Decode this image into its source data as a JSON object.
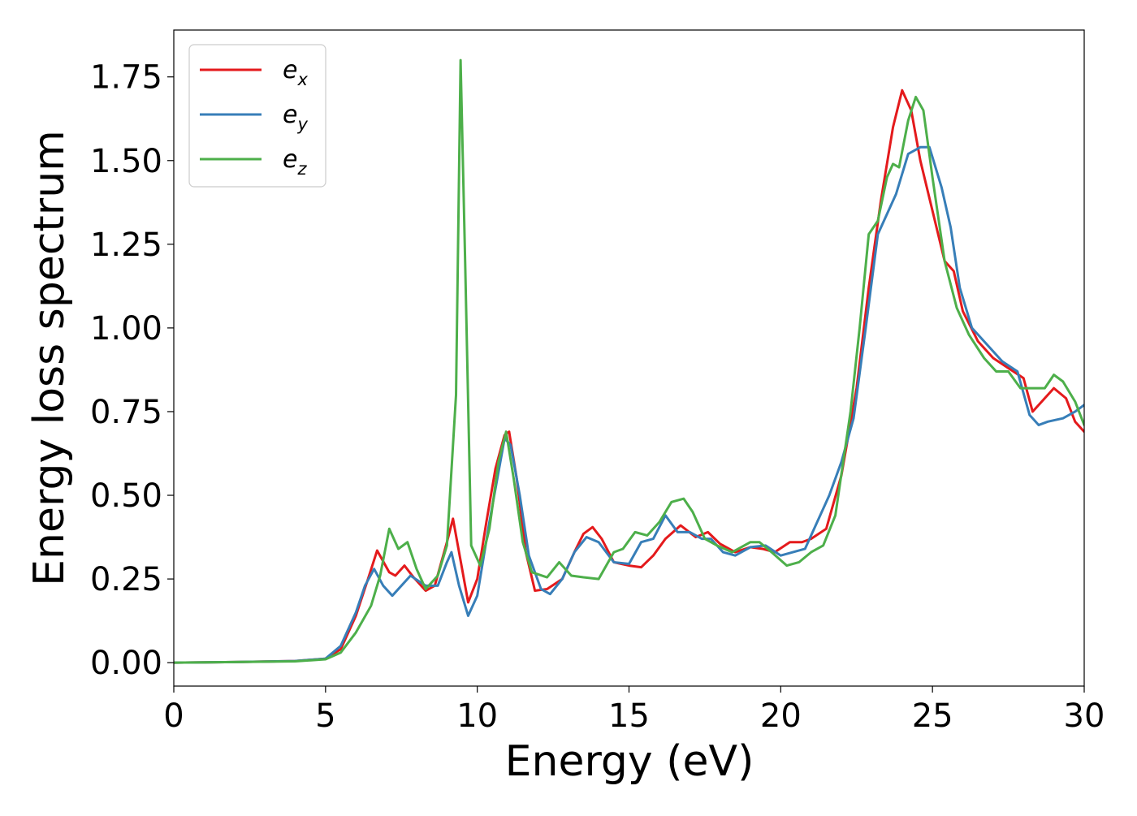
{
  "chart_data": {
    "type": "line",
    "title": "",
    "xlabel": "Energy (eV)",
    "ylabel": "Energy loss spectrum",
    "xlim": [
      0,
      30
    ],
    "ylim": [
      -0.07,
      1.89
    ],
    "xticks": [
      0,
      5,
      10,
      15,
      20,
      25,
      30
    ],
    "xtick_labels": [
      "0",
      "5",
      "10",
      "15",
      "20",
      "25",
      "30"
    ],
    "yticks": [
      0.0,
      0.25,
      0.5,
      0.75,
      1.0,
      1.25,
      1.5,
      1.75
    ],
    "ytick_labels": [
      "0.00",
      "0.25",
      "0.50",
      "0.75",
      "1.00",
      "1.25",
      "1.50",
      "1.75"
    ],
    "grid": false,
    "legend_position": "top-left",
    "series": [
      {
        "name": "e_x",
        "label_base": "e",
        "label_sub": "x",
        "color": "#e41a1c",
        "points": [
          [
            0,
            0
          ],
          [
            2,
            0.002
          ],
          [
            4,
            0.005
          ],
          [
            5,
            0.012
          ],
          [
            5.5,
            0.04
          ],
          [
            6,
            0.14
          ],
          [
            6.4,
            0.25
          ],
          [
            6.7,
            0.335
          ],
          [
            7.1,
            0.27
          ],
          [
            7.3,
            0.26
          ],
          [
            7.6,
            0.29
          ],
          [
            7.9,
            0.255
          ],
          [
            8.3,
            0.215
          ],
          [
            8.6,
            0.23
          ],
          [
            9,
            0.36
          ],
          [
            9.2,
            0.43
          ],
          [
            9.4,
            0.33
          ],
          [
            9.7,
            0.18
          ],
          [
            10,
            0.25
          ],
          [
            10.3,
            0.42
          ],
          [
            10.6,
            0.58
          ],
          [
            10.9,
            0.68
          ],
          [
            11.05,
            0.69
          ],
          [
            11.3,
            0.55
          ],
          [
            11.6,
            0.33
          ],
          [
            11.9,
            0.215
          ],
          [
            12.3,
            0.22
          ],
          [
            12.8,
            0.25
          ],
          [
            13.2,
            0.33
          ],
          [
            13.5,
            0.385
          ],
          [
            13.8,
            0.405
          ],
          [
            14.1,
            0.37
          ],
          [
            14.5,
            0.3
          ],
          [
            15,
            0.29
          ],
          [
            15.4,
            0.285
          ],
          [
            15.8,
            0.32
          ],
          [
            16.2,
            0.37
          ],
          [
            16.7,
            0.41
          ],
          [
            17.2,
            0.375
          ],
          [
            17.6,
            0.39
          ],
          [
            18,
            0.355
          ],
          [
            18.5,
            0.33
          ],
          [
            19,
            0.345
          ],
          [
            19.4,
            0.34
          ],
          [
            19.8,
            0.33
          ],
          [
            20.3,
            0.36
          ],
          [
            20.7,
            0.36
          ],
          [
            21,
            0.37
          ],
          [
            21.5,
            0.4
          ],
          [
            22,
            0.56
          ],
          [
            22.5,
            0.82
          ],
          [
            22.9,
            1.12
          ],
          [
            23.3,
            1.38
          ],
          [
            23.7,
            1.6
          ],
          [
            24,
            1.71
          ],
          [
            24.3,
            1.65
          ],
          [
            24.6,
            1.5
          ],
          [
            25,
            1.35
          ],
          [
            25.4,
            1.2
          ],
          [
            25.7,
            1.17
          ],
          [
            26,
            1.05
          ],
          [
            26.5,
            0.96
          ],
          [
            27,
            0.91
          ],
          [
            27.5,
            0.88
          ],
          [
            28,
            0.85
          ],
          [
            28.3,
            0.75
          ],
          [
            28.7,
            0.79
          ],
          [
            29,
            0.82
          ],
          [
            29.4,
            0.79
          ],
          [
            29.7,
            0.72
          ],
          [
            30,
            0.69
          ]
        ]
      },
      {
        "name": "e_y",
        "label_base": "e",
        "label_sub": "y",
        "color": "#377eb8",
        "points": [
          [
            0,
            0
          ],
          [
            2,
            0.002
          ],
          [
            4,
            0.005
          ],
          [
            5,
            0.012
          ],
          [
            5.5,
            0.05
          ],
          [
            6,
            0.15
          ],
          [
            6.3,
            0.23
          ],
          [
            6.6,
            0.28
          ],
          [
            6.9,
            0.23
          ],
          [
            7.2,
            0.2
          ],
          [
            7.8,
            0.26
          ],
          [
            8.3,
            0.23
          ],
          [
            8.7,
            0.23
          ],
          [
            9,
            0.3
          ],
          [
            9.15,
            0.33
          ],
          [
            9.4,
            0.23
          ],
          [
            9.7,
            0.14
          ],
          [
            10,
            0.2
          ],
          [
            10.4,
            0.42
          ],
          [
            10.9,
            0.67
          ],
          [
            11.1,
            0.65
          ],
          [
            11.4,
            0.5
          ],
          [
            11.7,
            0.32
          ],
          [
            12.1,
            0.22
          ],
          [
            12.4,
            0.205
          ],
          [
            12.8,
            0.25
          ],
          [
            13.2,
            0.33
          ],
          [
            13.6,
            0.375
          ],
          [
            14,
            0.36
          ],
          [
            14.5,
            0.3
          ],
          [
            15,
            0.295
          ],
          [
            15.4,
            0.36
          ],
          [
            15.8,
            0.37
          ],
          [
            16.2,
            0.44
          ],
          [
            16.6,
            0.39
          ],
          [
            17,
            0.39
          ],
          [
            17.4,
            0.37
          ],
          [
            17.7,
            0.37
          ],
          [
            18.1,
            0.33
          ],
          [
            18.5,
            0.32
          ],
          [
            19,
            0.345
          ],
          [
            19.5,
            0.35
          ],
          [
            20,
            0.32
          ],
          [
            20.4,
            0.33
          ],
          [
            20.8,
            0.34
          ],
          [
            21.2,
            0.42
          ],
          [
            21.6,
            0.5
          ],
          [
            22,
            0.6
          ],
          [
            22.4,
            0.73
          ],
          [
            22.8,
            1.0
          ],
          [
            23.2,
            1.28
          ],
          [
            23.5,
            1.34
          ],
          [
            23.8,
            1.4
          ],
          [
            24.2,
            1.52
          ],
          [
            24.6,
            1.54
          ],
          [
            24.9,
            1.54
          ],
          [
            25.3,
            1.42
          ],
          [
            25.6,
            1.3
          ],
          [
            25.9,
            1.12
          ],
          [
            26.3,
            1.0
          ],
          [
            26.8,
            0.95
          ],
          [
            27.3,
            0.9
          ],
          [
            27.8,
            0.87
          ],
          [
            28.2,
            0.74
          ],
          [
            28.5,
            0.71
          ],
          [
            28.8,
            0.72
          ],
          [
            29.3,
            0.73
          ],
          [
            29.7,
            0.75
          ],
          [
            30,
            0.77
          ]
        ]
      },
      {
        "name": "e_z",
        "label_base": "e",
        "label_sub": "z",
        "color": "#4daf4a",
        "points": [
          [
            0,
            0
          ],
          [
            2,
            0.002
          ],
          [
            4,
            0.004
          ],
          [
            5,
            0.01
          ],
          [
            5.5,
            0.03
          ],
          [
            6,
            0.09
          ],
          [
            6.5,
            0.17
          ],
          [
            6.8,
            0.26
          ],
          [
            7.1,
            0.4
          ],
          [
            7.4,
            0.34
          ],
          [
            7.7,
            0.36
          ],
          [
            8,
            0.28
          ],
          [
            8.3,
            0.22
          ],
          [
            8.7,
            0.26
          ],
          [
            9,
            0.35
          ],
          [
            9.3,
            0.8
          ],
          [
            9.45,
            1.8
          ],
          [
            9.6,
            1.2
          ],
          [
            9.8,
            0.35
          ],
          [
            10.1,
            0.29
          ],
          [
            10.4,
            0.4
          ],
          [
            10.7,
            0.6
          ],
          [
            10.95,
            0.69
          ],
          [
            11.2,
            0.55
          ],
          [
            11.5,
            0.36
          ],
          [
            11.8,
            0.27
          ],
          [
            12.3,
            0.255
          ],
          [
            12.7,
            0.3
          ],
          [
            13.1,
            0.26
          ],
          [
            13.5,
            0.255
          ],
          [
            14,
            0.25
          ],
          [
            14.5,
            0.33
          ],
          [
            14.8,
            0.34
          ],
          [
            15.2,
            0.39
          ],
          [
            15.6,
            0.38
          ],
          [
            16,
            0.42
          ],
          [
            16.4,
            0.48
          ],
          [
            16.8,
            0.49
          ],
          [
            17.1,
            0.45
          ],
          [
            17.5,
            0.37
          ],
          [
            17.9,
            0.35
          ],
          [
            18.4,
            0.33
          ],
          [
            19,
            0.36
          ],
          [
            19.3,
            0.36
          ],
          [
            19.7,
            0.33
          ],
          [
            20.2,
            0.29
          ],
          [
            20.6,
            0.3
          ],
          [
            21,
            0.33
          ],
          [
            21.4,
            0.35
          ],
          [
            21.8,
            0.44
          ],
          [
            22.3,
            0.75
          ],
          [
            22.6,
            1.0
          ],
          [
            22.9,
            1.28
          ],
          [
            23.2,
            1.32
          ],
          [
            23.5,
            1.45
          ],
          [
            23.7,
            1.49
          ],
          [
            23.9,
            1.48
          ],
          [
            24.2,
            1.62
          ],
          [
            24.45,
            1.69
          ],
          [
            24.7,
            1.65
          ],
          [
            25,
            1.45
          ],
          [
            25.4,
            1.2
          ],
          [
            25.8,
            1.06
          ],
          [
            26.2,
            0.98
          ],
          [
            26.7,
            0.91
          ],
          [
            27.1,
            0.87
          ],
          [
            27.5,
            0.87
          ],
          [
            27.9,
            0.82
          ],
          [
            28.3,
            0.82
          ],
          [
            28.7,
            0.82
          ],
          [
            29,
            0.86
          ],
          [
            29.3,
            0.84
          ],
          [
            29.7,
            0.78
          ],
          [
            30,
            0.71
          ]
        ]
      }
    ]
  }
}
